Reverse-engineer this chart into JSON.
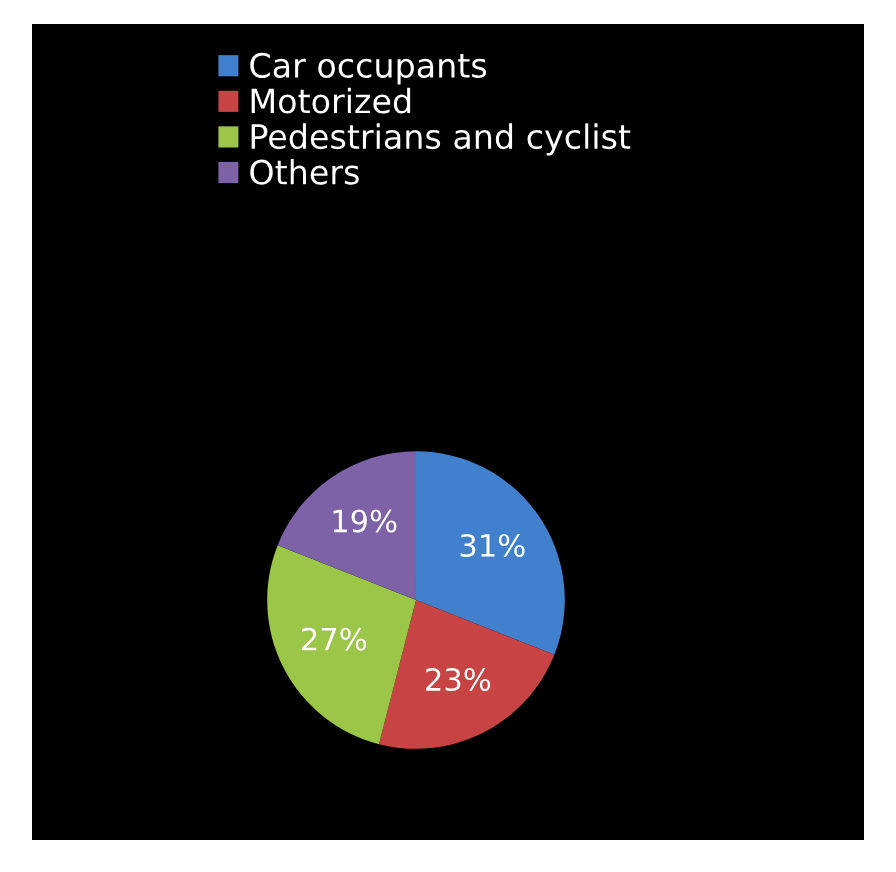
{
  "chart_data": {
    "type": "pie",
    "categories": [
      "Car occupants",
      "Motorized",
      "Pedestrians and cyclist",
      "Others"
    ],
    "values": [
      31,
      23,
      27,
      19
    ],
    "colors": [
      "#4080cc",
      "#c84444",
      "#9cc648",
      "#7e62a8"
    ],
    "value_labels": [
      "31%",
      "23%",
      "27%",
      "19%"
    ],
    "legend": "top"
  }
}
